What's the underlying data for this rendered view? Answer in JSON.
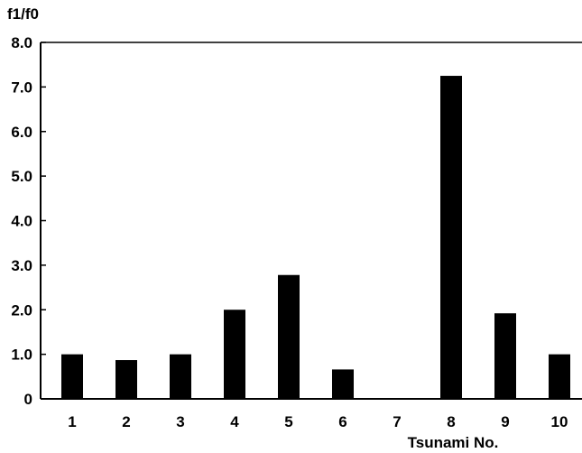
{
  "chart_data": {
    "type": "bar",
    "title": "",
    "xlabel": "Tsunami No.",
    "ylabel": "f1/f0",
    "categories": [
      "1",
      "2",
      "3",
      "4",
      "5",
      "6",
      "7",
      "8",
      "9",
      "10"
    ],
    "values": [
      1.0,
      0.87,
      1.0,
      2.0,
      2.78,
      0.66,
      0,
      7.25,
      1.92,
      1.0
    ],
    "ylim": [
      0,
      8
    ],
    "y_ticks": [
      "0",
      "1.0",
      "2.0",
      "3.0",
      "4.0",
      "5.0",
      "6.0",
      "7.0",
      "8.0"
    ],
    "grid": false,
    "bar_color": "#000000"
  }
}
